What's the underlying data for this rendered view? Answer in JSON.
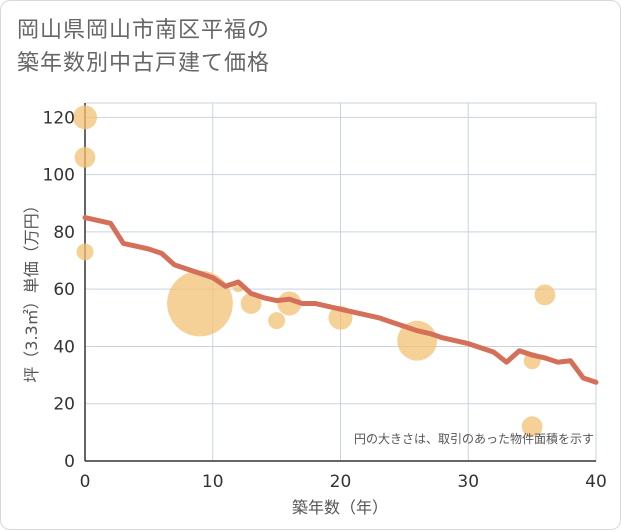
{
  "page": {
    "title_line1": "岡山県岡山市南区平福の",
    "title_line2": "築年数別中古戸建て価格"
  },
  "colors": {
    "line": "#d4705a",
    "bubble": "#f3c274",
    "grid": "#c9d3df",
    "plot_bg": "#ffffff"
  },
  "chart_data": {
    "type": "scatter",
    "title": "岡山県岡山市南区平福の築年数別中古戸建て価格",
    "xlabel": "築年数（年）",
    "ylabel": "坪（3.3㎡）単価（万円）",
    "xlim": [
      0,
      40
    ],
    "ylim": [
      0,
      125
    ],
    "xticks": [
      0,
      10,
      20,
      30,
      40
    ],
    "yticks": [
      0,
      20,
      40,
      60,
      80,
      100,
      120
    ],
    "xtick_labels": [
      "0",
      "10",
      "20",
      "30",
      "40"
    ],
    "ytick_labels": [
      "0",
      "20",
      "40",
      "60",
      "80",
      "100",
      "120"
    ],
    "note": "円の大きさは、取引のあった物件面積を示す",
    "bubbles": [
      {
        "x": 0,
        "y": 120,
        "size": 4
      },
      {
        "x": 0,
        "y": 106,
        "size": 3
      },
      {
        "x": 0,
        "y": 73,
        "size": 2
      },
      {
        "x": 9,
        "y": 55,
        "size": 30
      },
      {
        "x": 12,
        "y": 61,
        "size": 1
      },
      {
        "x": 13,
        "y": 55,
        "size": 3
      },
      {
        "x": 15,
        "y": 49,
        "size": 2
      },
      {
        "x": 16,
        "y": 55,
        "size": 4
      },
      {
        "x": 20,
        "y": 50,
        "size": 4
      },
      {
        "x": 26,
        "y": 42,
        "size": 11
      },
      {
        "x": 35,
        "y": 35,
        "size": 2
      },
      {
        "x": 35,
        "y": 12,
        "size": 3
      },
      {
        "x": 36,
        "y": 58,
        "size": 3
      }
    ],
    "series": [
      {
        "name": "trend",
        "type": "line",
        "x": [
          0,
          1,
          2,
          3,
          4,
          5,
          6,
          7,
          8,
          9,
          10,
          11,
          12,
          13,
          14,
          15,
          16,
          17,
          18,
          19,
          20,
          21,
          22,
          23,
          24,
          25,
          26,
          27,
          28,
          29,
          30,
          31,
          32,
          33,
          34,
          35,
          36,
          37,
          38,
          39,
          40
        ],
        "y": [
          85,
          84,
          83,
          76,
          75,
          74,
          72.5,
          68.5,
          67,
          65.5,
          64,
          61,
          62.5,
          58.5,
          57,
          56,
          56.5,
          55,
          55,
          54,
          53,
          52,
          51,
          50,
          48.5,
          47,
          45.5,
          44.5,
          43,
          42,
          41,
          39.5,
          38,
          34.5,
          38.5,
          37,
          36,
          34.5,
          35,
          29,
          27.5
        ]
      }
    ]
  }
}
